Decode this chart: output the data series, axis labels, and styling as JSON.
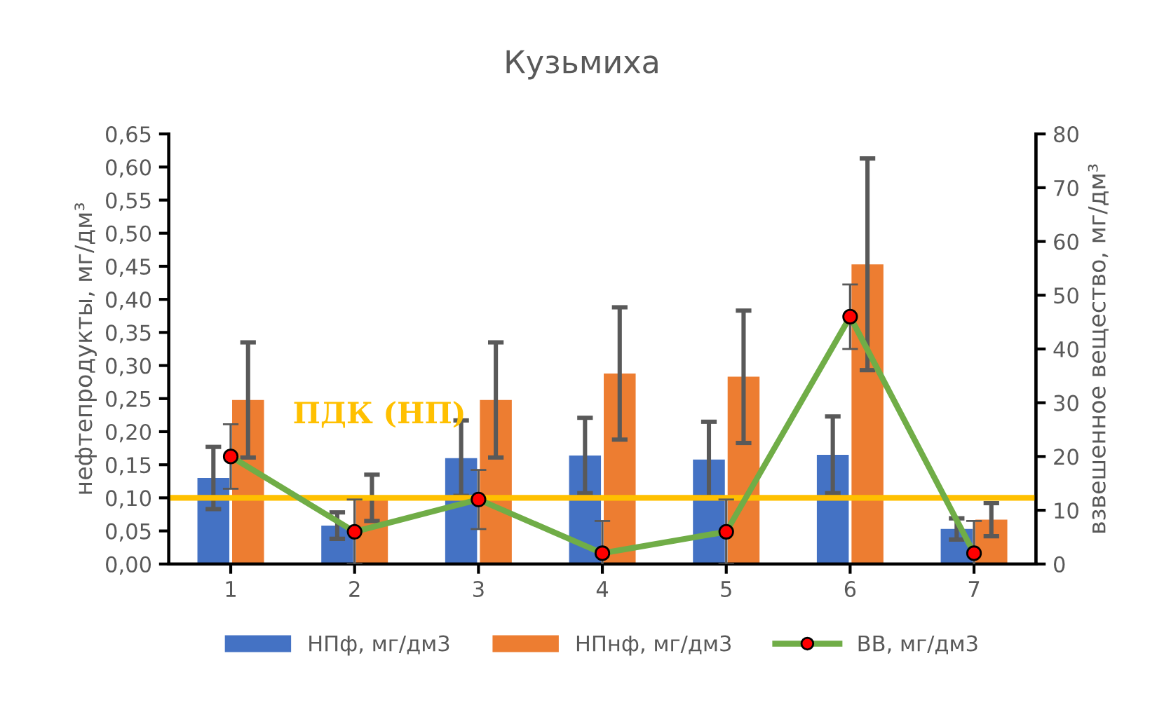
{
  "chart_data": {
    "type": "bar",
    "title": "Кузьмиха",
    "ylabel": "нефтепродукты, мг/дм³",
    "y2label": "взвешенное вещество, мг/дм³",
    "categories": [
      "1",
      "2",
      "3",
      "4",
      "5",
      "6",
      "7"
    ],
    "series": [
      {
        "name": "НПф, мг/дм3",
        "color": "#4472c4",
        "values": [
          0.13,
          0.058,
          0.16,
          0.164,
          0.158,
          0.165,
          0.053
        ],
        "errors": [
          0.047,
          0.02,
          0.057,
          0.057,
          0.057,
          0.058,
          0.016
        ]
      },
      {
        "name": "НПнф, мг/дм3",
        "color": "#ed7d31",
        "values": [
          0.248,
          0.1,
          0.248,
          0.288,
          0.283,
          0.453,
          0.067
        ],
        "errors": [
          0.087,
          0.035,
          0.087,
          0.1,
          0.1,
          0.16,
          0.025
        ]
      },
      {
        "name": "ВВ, мг/дм3",
        "type": "line",
        "axis": "y2",
        "color": "#70ad47",
        "marker": "circle",
        "values": [
          20,
          6,
          12,
          2,
          6,
          46,
          2
        ],
        "errors": [
          6,
          6,
          5.5,
          6,
          6,
          6,
          6
        ]
      }
    ],
    "ylim": [
      0,
      0.65
    ],
    "yticks": [
      {
        "value": 0,
        "label": "0,00"
      },
      {
        "value": 0.05,
        "label": "0,05"
      },
      {
        "value": 0.1,
        "label": "0,10"
      },
      {
        "value": 0.15,
        "label": "0,15"
      },
      {
        "value": 0.2,
        "label": "0,20"
      },
      {
        "value": 0.25,
        "label": "0,25"
      },
      {
        "value": 0.3,
        "label": "0,30"
      },
      {
        "value": 0.35,
        "label": "0,35"
      },
      {
        "value": 0.4,
        "label": "0,40"
      },
      {
        "value": 0.45,
        "label": "0,45"
      },
      {
        "value": 0.5,
        "label": "0,50"
      },
      {
        "value": 0.55,
        "label": "0,55"
      },
      {
        "value": 0.6,
        "label": "0,60"
      },
      {
        "value": 0.65,
        "label": "0,65"
      }
    ],
    "y2lim": [
      0,
      80
    ],
    "y2ticks": [
      0,
      10,
      20,
      30,
      40,
      50,
      60,
      70,
      80
    ],
    "ref_lines": [
      {
        "axis": "y",
        "value": 0.1,
        "label": "ПДК (НП)",
        "color": "#ffc000"
      }
    ],
    "grid": false,
    "legend": "bottom"
  }
}
